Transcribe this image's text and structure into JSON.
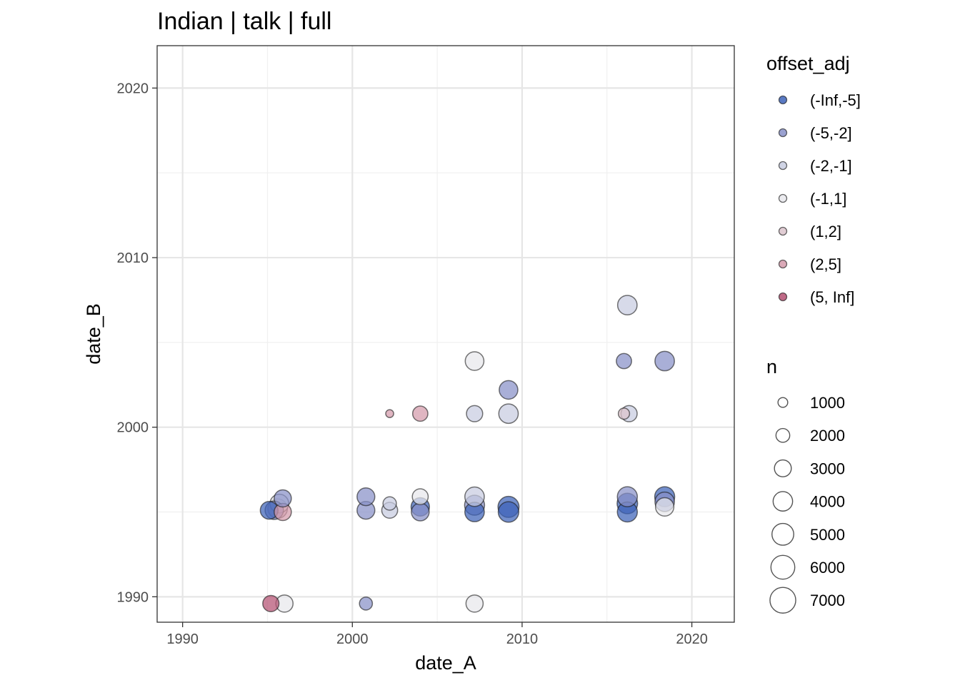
{
  "chart_data": {
    "type": "scatter",
    "title": "Indian | talk | full",
    "xlabel": "date_A",
    "ylabel": "date_B",
    "xlim": [
      1988.5,
      2022.5
    ],
    "ylim": [
      1988.5,
      2022.5
    ],
    "xticks": [
      1990,
      2000,
      2010,
      2020
    ],
    "yticks": [
      1990,
      2000,
      2010,
      2020
    ],
    "grid": true,
    "legend_position": "right",
    "color_legend": {
      "title": "offset_adj",
      "categories": [
        "(-Inf,-5]",
        "(-5,-2]",
        "(-2,-1]",
        "(-1,1]",
        "(1,2]",
        "(2,5]",
        "(5, Inf]"
      ],
      "colors": [
        "#3d63b8",
        "#8890c8",
        "#c8cce0",
        "#e8e8ec",
        "#dcc4cc",
        "#d49aaa",
        "#b45072"
      ]
    },
    "size_legend": {
      "title": "n",
      "values": [
        1000,
        2000,
        3000,
        4000,
        5000,
        6000,
        7000
      ]
    },
    "points": [
      {
        "x": 1995.2,
        "y": 1989.6,
        "n": 2500,
        "cat": "(5, Inf]"
      },
      {
        "x": 1996.0,
        "y": 1989.6,
        "n": 2800,
        "cat": "(-1,1]"
      },
      {
        "x": 2000.8,
        "y": 1989.6,
        "n": 1600,
        "cat": "(-5,-2]"
      },
      {
        "x": 2007.2,
        "y": 1989.6,
        "n": 2800,
        "cat": "(-1,1]"
      },
      {
        "x": 1995.1,
        "y": 1995.1,
        "n": 3000,
        "cat": "(-Inf,-5]"
      },
      {
        "x": 1995.4,
        "y": 1995.1,
        "n": 3200,
        "cat": "(-5,-2]"
      },
      {
        "x": 1995.6,
        "y": 1995.2,
        "n": 3600,
        "cat": "(1,2]"
      },
      {
        "x": 1995.9,
        "y": 1995.0,
        "n": 2800,
        "cat": "(2,5]"
      },
      {
        "x": 1995.7,
        "y": 1995.5,
        "n": 3300,
        "cat": "(-1,1]"
      },
      {
        "x": 1995.9,
        "y": 1995.8,
        "n": 2800,
        "cat": "(-5,-2]"
      },
      {
        "x": 2000.8,
        "y": 1995.1,
        "n": 3000,
        "cat": "(-5,-2]"
      },
      {
        "x": 2000.8,
        "y": 1995.9,
        "n": 3000,
        "cat": "(-5,-2]"
      },
      {
        "x": 2002.2,
        "y": 1995.1,
        "n": 2400,
        "cat": "(-2,-1]"
      },
      {
        "x": 2002.2,
        "y": 1995.5,
        "n": 1700,
        "cat": "(-2,-1]"
      },
      {
        "x": 2004.0,
        "y": 1995.0,
        "n": 3000,
        "cat": "(-5,-2]"
      },
      {
        "x": 2004.0,
        "y": 1995.3,
        "n": 3200,
        "cat": "(-Inf,-5]"
      },
      {
        "x": 2004.0,
        "y": 1995.9,
        "n": 2400,
        "cat": "(-1,1]"
      },
      {
        "x": 2007.2,
        "y": 1995.0,
        "n": 3600,
        "cat": "(-Inf,-5]"
      },
      {
        "x": 2007.2,
        "y": 1995.4,
        "n": 3800,
        "cat": "(-5,-2]"
      },
      {
        "x": 2007.2,
        "y": 1995.9,
        "n": 3600,
        "cat": "(-2,-1]"
      },
      {
        "x": 2009.2,
        "y": 1995.0,
        "n": 4000,
        "cat": "(-Inf,-5]"
      },
      {
        "x": 2009.2,
        "y": 1995.3,
        "n": 4200,
        "cat": "(-Inf,-5]"
      },
      {
        "x": 2016.2,
        "y": 1995.0,
        "n": 3800,
        "cat": "(-Inf,-5]"
      },
      {
        "x": 2016.2,
        "y": 1995.5,
        "n": 4000,
        "cat": "(-Inf,-5]"
      },
      {
        "x": 2016.2,
        "y": 1995.9,
        "n": 3800,
        "cat": "(-5,-2]"
      },
      {
        "x": 2018.4,
        "y": 1995.3,
        "n": 3200,
        "cat": "(-1,1]"
      },
      {
        "x": 2018.4,
        "y": 1995.6,
        "n": 3600,
        "cat": "(-5,-2]"
      },
      {
        "x": 2018.4,
        "y": 1995.9,
        "n": 3800,
        "cat": "(-Inf,-5]"
      },
      {
        "x": 2002.2,
        "y": 2000.8,
        "n": 600,
        "cat": "(2,5]"
      },
      {
        "x": 2004.0,
        "y": 2000.8,
        "n": 2200,
        "cat": "(2,5]"
      },
      {
        "x": 2007.2,
        "y": 2000.8,
        "n": 2500,
        "cat": "(-2,-1]"
      },
      {
        "x": 2009.2,
        "y": 2000.8,
        "n": 3600,
        "cat": "(-2,-1]"
      },
      {
        "x": 2016.0,
        "y": 2000.8,
        "n": 1200,
        "cat": "(1,2]"
      },
      {
        "x": 2016.3,
        "y": 2000.8,
        "n": 2500,
        "cat": "(-2,-1]"
      },
      {
        "x": 2009.2,
        "y": 2002.2,
        "n": 3300,
        "cat": "(-5,-2]"
      },
      {
        "x": 2007.2,
        "y": 2003.9,
        "n": 3300,
        "cat": "(-1,1]"
      },
      {
        "x": 2016.0,
        "y": 2003.9,
        "n": 2200,
        "cat": "(-5,-2]"
      },
      {
        "x": 2018.4,
        "y": 2003.9,
        "n": 3600,
        "cat": "(-5,-2]"
      },
      {
        "x": 2016.2,
        "y": 2007.2,
        "n": 3600,
        "cat": "(-2,-1]"
      }
    ]
  }
}
